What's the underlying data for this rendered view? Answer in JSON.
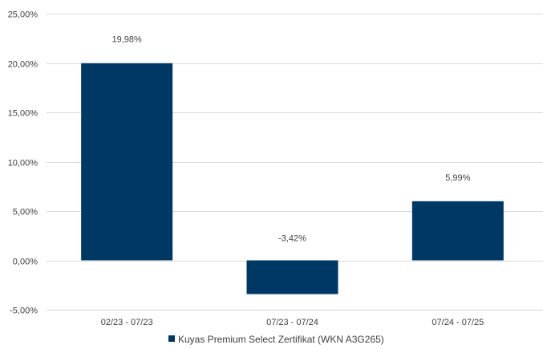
{
  "chart_data": {
    "type": "bar",
    "title": "",
    "xlabel": "",
    "ylabel": "",
    "categories": [
      "02/23 - 07/23",
      "07/23 - 07/24",
      "07/24 - 07/25"
    ],
    "series": [
      {
        "name": "Kuyas Premium Select Zertifikat (WKN A3G265)",
        "values": [
          19.98,
          -3.42,
          5.99
        ],
        "value_labels": [
          "19,98%",
          "-3,42%",
          "5,99%"
        ],
        "color": "#003865"
      }
    ],
    "ylim": [
      -5,
      25
    ],
    "yticks": [
      -5,
      0,
      5,
      10,
      15,
      20,
      25
    ],
    "ytick_labels": [
      "-5,00%",
      "0,00%",
      "5,00%",
      "10,00%",
      "15,00%",
      "20,00%",
      "25,00%"
    ],
    "grid": true,
    "legend_position": "bottom"
  }
}
